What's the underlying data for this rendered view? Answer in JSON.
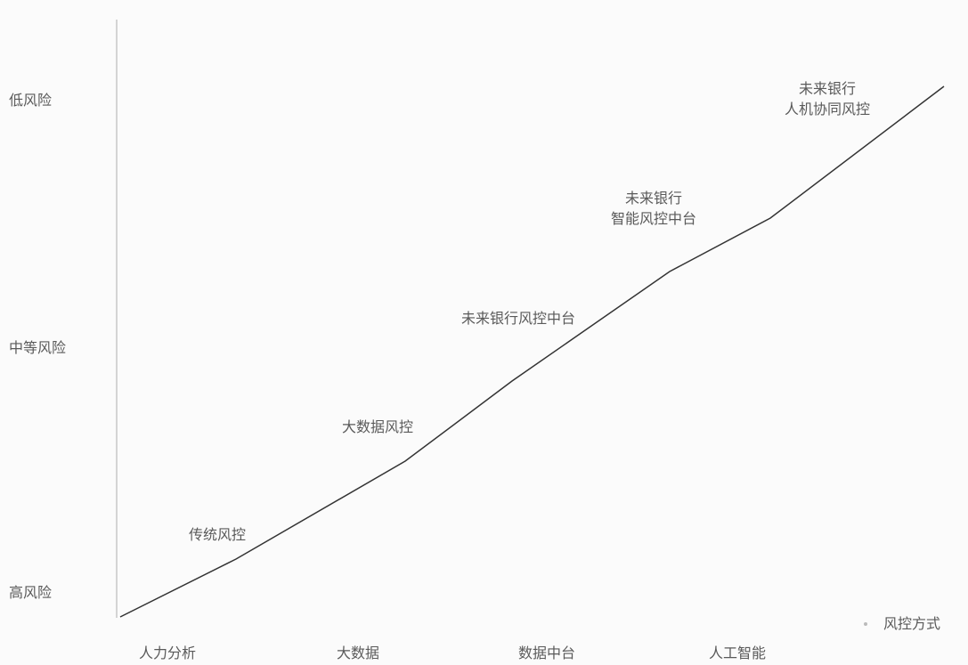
{
  "y_axis": {
    "labels": [
      "低风险",
      "中等风险",
      "高风险"
    ]
  },
  "x_axis": {
    "labels": [
      "人力分析",
      "大数据",
      "数据中台",
      "人工智能"
    ],
    "legend": "风控方式"
  },
  "stages": [
    {
      "lines": [
        "传统风控"
      ]
    },
    {
      "lines": [
        "大数据风控"
      ]
    },
    {
      "lines": [
        "未来银行风控中台"
      ]
    },
    {
      "lines": [
        "未来银行",
        "智能风控中台"
      ]
    },
    {
      "lines": [
        "未来银行",
        "人机协同风控"
      ]
    }
  ],
  "colors": {
    "axis": "#c8c8c8",
    "line": "#333333",
    "text": "#5a5a5a"
  }
}
